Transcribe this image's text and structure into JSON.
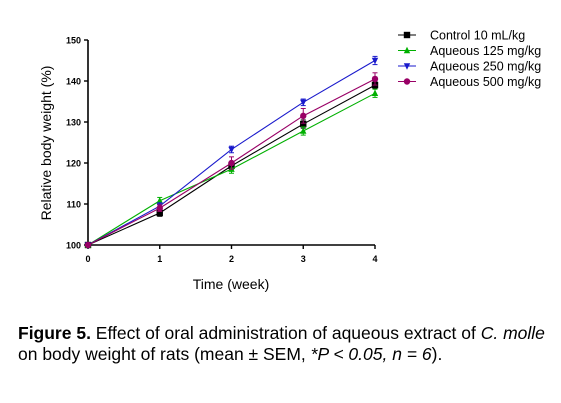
{
  "chart_data": {
    "type": "line",
    "x": [
      0,
      1,
      2,
      3,
      4
    ],
    "xlabel": "Time (week)",
    "ylabel": "Relative body weight (%)",
    "xlim": [
      0,
      4
    ],
    "ylim": [
      100,
      150
    ],
    "xticks": [
      "0",
      "1",
      "2",
      "3",
      "4"
    ],
    "yticks": [
      "100",
      "110",
      "120",
      "130",
      "140",
      "150"
    ],
    "grid": false,
    "legend_position": "top-right",
    "series": [
      {
        "name": "Control 10 mL/kg",
        "color": "#000000",
        "marker": "square",
        "values": [
          100,
          107.8,
          119.3,
          129.5,
          139.0
        ],
        "errors": [
          0,
          0.8,
          0.8,
          1.0,
          0.8
        ]
      },
      {
        "name": "Aqueous 125 mg/kg",
        "color": "#00b000",
        "marker": "triangle-up",
        "values": [
          100,
          110.8,
          118.5,
          127.8,
          137.0
        ],
        "errors": [
          0,
          0.8,
          1.0,
          1.0,
          1.0
        ]
      },
      {
        "name": "Aqueous 250 mg/kg",
        "color": "#1a1acc",
        "marker": "triangle-down",
        "values": [
          100,
          109.5,
          123.3,
          134.8,
          145.0
        ],
        "errors": [
          0,
          0.8,
          0.8,
          0.8,
          1.0
        ]
      },
      {
        "name": "Aqueous 500 mg/kg",
        "color": "#990066",
        "marker": "circle",
        "values": [
          100,
          109.0,
          120.0,
          131.5,
          140.5
        ],
        "errors": [
          0,
          0.8,
          1.5,
          1.8,
          1.5
        ]
      }
    ]
  },
  "caption": {
    "label": "Figure 5.",
    "text1": " Effect of oral administration of aqueous extract of ",
    "species": "C. molle",
    "text2": " on body weight of rats (mean ± SEM, ",
    "stat": "*P < 0.05, n = 6",
    "text3": ")."
  }
}
